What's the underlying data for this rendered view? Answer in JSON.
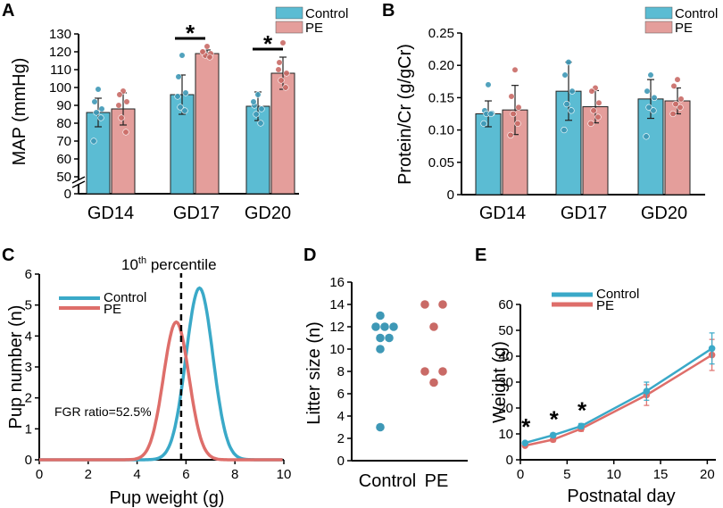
{
  "colors": {
    "control_fill": "#5BBCD3",
    "control_line": "#3AA9C8",
    "control_point": "#3E98B6",
    "pe_fill": "#E49E9B",
    "pe_line": "#DE6E6A",
    "pe_point": "#C96A66",
    "axis": "#000000"
  },
  "chart_data": [
    {
      "panel": "A",
      "type": "bar",
      "ylabel": "MAP (mmHg)",
      "categories": [
        "GD14",
        "GD17",
        "GD20"
      ],
      "yticks": [
        "0",
        "50",
        "60",
        "70",
        "80",
        "90",
        "100",
        "110",
        "120",
        "130"
      ],
      "ylim": [
        50,
        130
      ],
      "axis_break": "0 to 50",
      "legend": [
        "Control",
        "PE"
      ],
      "series": [
        {
          "name": "Control",
          "values": [
            86,
            96,
            89.5
          ],
          "errors": [
            8,
            11,
            8
          ],
          "points": [
            [
              99,
              92,
              88,
              86,
              83,
              70
            ],
            [
              118,
              106,
              97,
              89,
              87,
              95
            ],
            [
              96,
              90,
              88,
              85,
              80,
              92
            ]
          ]
        },
        {
          "name": "PE",
          "values": [
            88,
            119,
            108
          ],
          "errors": [
            9,
            2,
            9
          ],
          "points": [
            [
              98,
              96,
              92,
              83,
              75,
              90
            ],
            [
              123,
              120,
              119,
              118,
              117,
              120
            ],
            [
              125,
              114,
              108,
              104,
              100,
              110
            ]
          ]
        }
      ],
      "significance": [
        {
          "category": "GD17",
          "label": "*"
        },
        {
          "category": "GD20",
          "label": "*"
        }
      ]
    },
    {
      "panel": "B",
      "type": "bar",
      "ylabel": "Protein/Cr (g/gCr)",
      "categories": [
        "GD14",
        "GD17",
        "GD20"
      ],
      "yticks": [
        "0",
        "0.05",
        "0.10",
        "0.15",
        "0.20",
        "0.25"
      ],
      "ylim": [
        0,
        0.25
      ],
      "legend": [
        "Control",
        "PE"
      ],
      "series": [
        {
          "name": "Control",
          "values": [
            0.125,
            0.16,
            0.148
          ],
          "errors": [
            0.02,
            0.045,
            0.03
          ],
          "points": [
            [
              0.17,
              0.13,
              0.126,
              0.125,
              0.125,
              0.11
            ],
            [
              0.205,
              0.185,
              0.16,
              0.14,
              0.13,
              0.1
            ],
            [
              0.185,
              0.16,
              0.15,
              0.135,
              0.13,
              0.09
            ]
          ]
        },
        {
          "name": "PE",
          "values": [
            0.131,
            0.136,
            0.145
          ],
          "errors": [
            0.038,
            0.025,
            0.02
          ],
          "points": [
            [
              0.193,
              0.152,
              0.135,
              0.125,
              0.11,
              0.092
            ],
            [
              0.165,
              0.16,
              0.142,
              0.13,
              0.12,
              0.11
            ],
            [
              0.178,
              0.168,
              0.148,
              0.14,
              0.135,
              0.125
            ]
          ]
        }
      ]
    },
    {
      "panel": "C",
      "type": "line",
      "xlabel": "Pup weight (g)",
      "ylabel": "Pup number (n)",
      "xlim": [
        0,
        10
      ],
      "ylim": [
        0,
        6
      ],
      "xticks": [
        "0",
        "2",
        "4",
        "6",
        "8",
        "10"
      ],
      "yticks": [
        "0",
        "1",
        "2",
        "3",
        "4",
        "5",
        "6"
      ],
      "legend": [
        "Control",
        "PE"
      ],
      "series": [
        {
          "name": "Control",
          "shape": "normal",
          "mean": 6.55,
          "sd": 0.55,
          "peak": 5.55
        },
        {
          "name": "PE",
          "shape": "normal",
          "mean": 5.6,
          "sd": 0.52,
          "peak": 4.45
        }
      ],
      "percentile_line": {
        "x": 5.8,
        "label_main": "10",
        "label_sup": "th",
        "label_rest": " percentile"
      },
      "annotation": "FGR ratio=52.5%"
    },
    {
      "panel": "D",
      "type": "scatter",
      "ylabel": "Litter size (n)",
      "categories": [
        "Control",
        "PE"
      ],
      "ylim": [
        0,
        16
      ],
      "yticks": [
        "0",
        "2",
        "4",
        "6",
        "8",
        "10",
        "12",
        "14",
        "16"
      ],
      "series": [
        {
          "name": "Control",
          "points": [
            [
              -0.1,
              13
            ],
            [
              -0.2,
              12
            ],
            [
              0,
              12
            ],
            [
              0.2,
              12
            ],
            [
              -0.1,
              11
            ],
            [
              0.1,
              11
            ],
            [
              -0.1,
              10
            ],
            [
              -0.1,
              3
            ]
          ]
        },
        {
          "name": "PE",
          "points": [
            [
              -0.2,
              14
            ],
            [
              0.2,
              14
            ],
            [
              0,
              12
            ],
            [
              -0.2,
              8
            ],
            [
              0.2,
              8
            ],
            [
              0,
              7
            ]
          ]
        }
      ]
    },
    {
      "panel": "E",
      "type": "line",
      "xlabel": "Postnatal day",
      "ylabel": "Weight (g)",
      "xlim": [
        0,
        21
      ],
      "ylim": [
        0,
        60
      ],
      "xticks": [
        "0",
        "5",
        "10",
        "15",
        "20"
      ],
      "yticks": [
        "0",
        "10",
        "20",
        "30",
        "40",
        "50",
        "60"
      ],
      "legend": [
        "Control",
        "PE"
      ],
      "series": [
        {
          "name": "Control",
          "x": [
            0.5,
            3.5,
            6.5,
            13.5,
            20.5
          ],
          "y": [
            6.5,
            9.5,
            13,
            26.5,
            43
          ],
          "errors": [
            0.5,
            0.8,
            1.0,
            3.5,
            6.0
          ]
        },
        {
          "name": "PE",
          "x": [
            0.5,
            3.5,
            6.5,
            13.5,
            20.5
          ],
          "y": [
            5.5,
            7.8,
            12,
            25,
            40.5
          ],
          "errors": [
            0.5,
            0.8,
            1.0,
            4.0,
            6.0
          ]
        }
      ],
      "significance": [
        {
          "x": 0.5,
          "label": "*"
        },
        {
          "x": 3.5,
          "label": "*"
        },
        {
          "x": 6.5,
          "label": "*"
        }
      ]
    }
  ]
}
